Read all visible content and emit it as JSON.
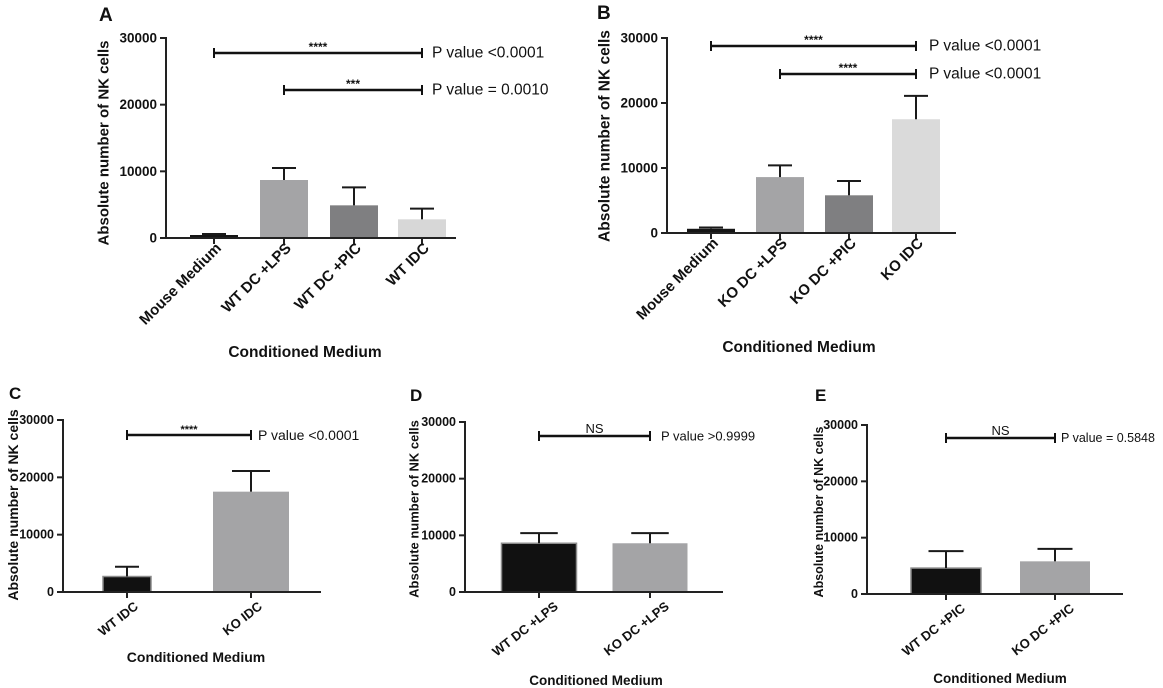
{
  "chart_data": [
    {
      "panel": "A",
      "type": "bar",
      "categories": [
        "Mouse Medium",
        "WT DC +LPS",
        "WT DC +PIC",
        "WT IDC"
      ],
      "values": [
        450,
        8700,
        4900,
        2800
      ],
      "error_upper": [
        600,
        10500,
        7600,
        4400
      ],
      "colors": [
        "#151515",
        "#a4a4a6",
        "#7f7f81",
        "#d7d7d7"
      ],
      "xlabel": "Conditioned Medium",
      "ylabel": "Absolute number of NK cells",
      "ylim": [
        0,
        30000
      ],
      "yticks": [
        0,
        10000,
        20000,
        30000
      ],
      "comparisons": [
        {
          "from": 0,
          "to": 3,
          "significance": "****",
          "p_label": "P value <0.0001"
        },
        {
          "from": 1,
          "to": 3,
          "significance": "***",
          "p_label": "P value = 0.0010"
        }
      ]
    },
    {
      "panel": "B",
      "type": "bar",
      "categories": [
        "Mouse Medium",
        "KO DC +LPS",
        "KO DC +PIC",
        "KO IDC"
      ],
      "values": [
        650,
        8600,
        5800,
        17500
      ],
      "error_upper": [
        850,
        10400,
        8000,
        21100
      ],
      "colors": [
        "#151515",
        "#a4a4a6",
        "#7f7f81",
        "#dadada"
      ],
      "xlabel": "Conditioned Medium",
      "ylabel": "Absolute number of NK cells",
      "ylim": [
        0,
        30000
      ],
      "yticks": [
        0,
        10000,
        20000,
        30000
      ],
      "comparisons": [
        {
          "from": 0,
          "to": 3,
          "significance": "****",
          "p_label": "P value <0.0001"
        },
        {
          "from": 1,
          "to": 3,
          "significance": "****",
          "p_label": "P value <0.0001"
        }
      ]
    },
    {
      "panel": "C",
      "type": "bar",
      "categories": [
        "WT IDC",
        "KO IDC"
      ],
      "values": [
        2700,
        17500
      ],
      "error_upper": [
        4400,
        21100
      ],
      "colors": [
        "#111111",
        "#a4a4a6"
      ],
      "xlabel": "Conditioned Medium",
      "ylabel": "Absolute number of NK cells",
      "ylim": [
        0,
        30000
      ],
      "yticks": [
        0,
        10000,
        20000,
        30000
      ],
      "comparisons": [
        {
          "from": 0,
          "to": 1,
          "significance": "****",
          "p_label": "P value <0.0001"
        }
      ]
    },
    {
      "panel": "D",
      "type": "bar",
      "categories": [
        "WT DC +LPS",
        "KO DC +LPS"
      ],
      "values": [
        8600,
        8600
      ],
      "error_upper": [
        10400,
        10400
      ],
      "colors": [
        "#111111",
        "#a4a4a6"
      ],
      "xlabel": "Conditioned Medium",
      "ylabel": "Absolute number of NK cells",
      "ylim": [
        0,
        30000
      ],
      "yticks": [
        0,
        10000,
        20000,
        30000
      ],
      "comparisons": [
        {
          "from": 0,
          "to": 1,
          "significance": "NS",
          "p_label": "P value >0.9999"
        }
      ]
    },
    {
      "panel": "E",
      "type": "bar",
      "categories": [
        "WT DC +PIC",
        "KO DC +PIC"
      ],
      "values": [
        4600,
        5800
      ],
      "error_upper": [
        7600,
        8000
      ],
      "colors": [
        "#111111",
        "#a4a4a6"
      ],
      "xlabel": "Conditioned Medium",
      "ylabel": "Absolute number of NK cells",
      "ylim": [
        0,
        30000
      ],
      "yticks": [
        0,
        10000,
        20000,
        30000
      ],
      "comparisons": [
        {
          "from": 0,
          "to": 1,
          "significance": "NS",
          "p_label": "P value = 0.5848"
        }
      ]
    }
  ]
}
